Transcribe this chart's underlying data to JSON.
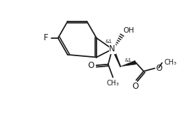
{
  "bg_color": "#ffffff",
  "line_color": "#1a1a1a",
  "lw": 1.3,
  "fs": 7.5,
  "figsize": [
    2.78,
    1.73
  ],
  "dpi": 100,
  "xlim": [
    0,
    10
  ],
  "ylim": [
    0,
    6.5
  ]
}
